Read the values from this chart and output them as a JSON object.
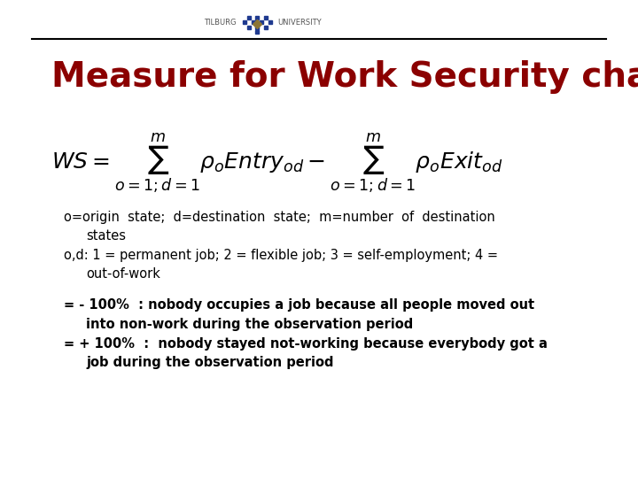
{
  "title": "Measure for Work Security changes",
  "title_color": "#8B0000",
  "title_fontsize": 28,
  "background_color": "#FFFFFF",
  "text_color": "#000000",
  "bold_color": "#000000",
  "header_line_color": "#000000",
  "logo_dots_color": "#1F3A8F",
  "logo_text_color": "#555555",
  "bullet1_line1": "o=origin  state;  d=destination  state;  m=number  of  destination",
  "bullet1_line2": "states",
  "bullet2_line1": "o,d: 1 = permanent job; 2 = flexible job; 3 = self-employment; 4 =",
  "bullet2_line2": "out-of-work",
  "bullet3_line1": "= - 100%  : nobody occupies a job because all people moved out",
  "bullet3_line2": "into non-work during the observation period",
  "bullet4_line1": "= + 100%  :  nobody stayed not-working because everybody got a",
  "bullet4_line2": "job during the observation period"
}
